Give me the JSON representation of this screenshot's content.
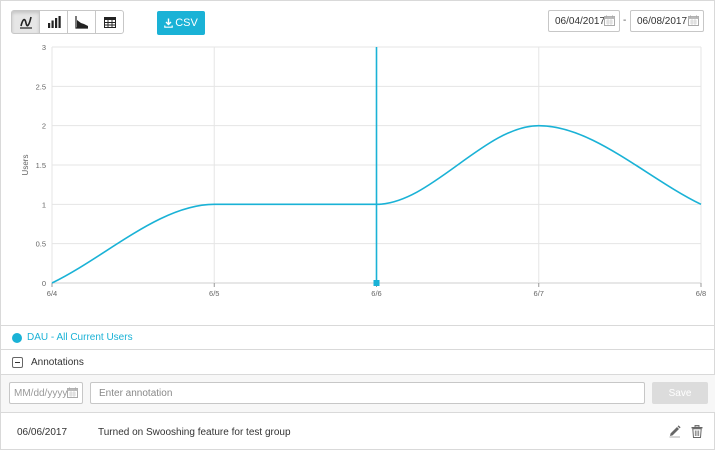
{
  "toolbar": {
    "views": [
      {
        "name": "line-chart-view",
        "icon": "line-chart-icon",
        "active": true
      },
      {
        "name": "bar-chart-view",
        "icon": "bar-chart-icon",
        "active": false
      },
      {
        "name": "area-chart-view",
        "icon": "area-chart-icon",
        "active": false
      },
      {
        "name": "table-view",
        "icon": "table-icon",
        "active": false
      }
    ],
    "csv_label": "CSV",
    "csv_icon": "download-icon"
  },
  "date_range": {
    "start": "06/04/2017",
    "end": "06/08/2017",
    "separator": "-",
    "calendar_icon": "calendar-icon"
  },
  "chart_data": {
    "type": "line",
    "title": "",
    "xlabel": "",
    "ylabel": "Users",
    "x": [
      "6/4",
      "6/5",
      "6/6",
      "6/7",
      "6/8"
    ],
    "series": [
      {
        "name": "DAU - All Current Users",
        "values": [
          0,
          1,
          1,
          2,
          1
        ]
      }
    ],
    "yticks": [
      "0",
      "0.5",
      "1",
      "1.5",
      "2",
      "2.5",
      "3"
    ],
    "ylim": [
      0,
      3
    ],
    "grid": true,
    "annotation_marker_x": "6/6",
    "colors": {
      "series": "#1ab2d6",
      "grid": "#e5e5e5"
    }
  },
  "legend": {
    "label": "DAU - All Current Users",
    "color": "#1ab2d6"
  },
  "annotations": {
    "title": "Annotations",
    "date_placeholder": "MM/dd/yyyy",
    "text_placeholder": "Enter annotation",
    "save_label": "Save",
    "entries": [
      {
        "date": "06/06/2017",
        "text": "Turned on Swooshing feature for test group"
      }
    ]
  }
}
